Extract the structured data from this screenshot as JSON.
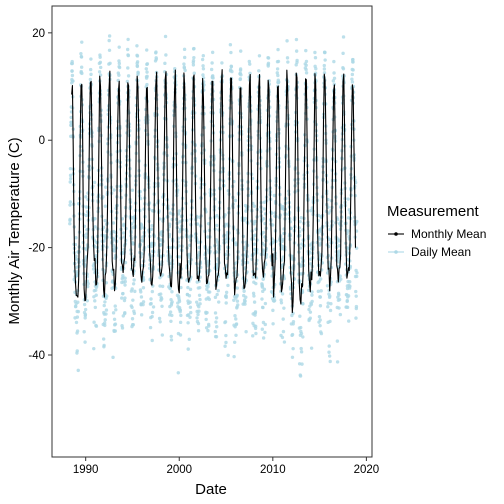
{
  "chart_data": {
    "type": "line",
    "title": "",
    "xlabel": "Date",
    "ylabel": "Monthly Air Temperature (C)",
    "xlim": [
      1986.4,
      2020.6
    ],
    "ylim": [
      -59,
      25
    ],
    "x_ticks": [
      1990,
      2000,
      2010,
      2020
    ],
    "y_ticks": [
      -40,
      -20,
      0,
      20
    ],
    "grid": false,
    "legend": {
      "title": "Measurement",
      "position": "right",
      "entries": [
        "Monthly Mean",
        "Daily Mean"
      ]
    },
    "series": [
      {
        "name": "Monthly Mean",
        "mark": "line",
        "color": "#000000",
        "x_range": [
          1988.5,
          2018.9
        ],
        "summer_peaks_by_year": [
          12,
          13,
          12,
          12,
          13,
          13,
          12,
          13,
          12,
          13,
          12,
          13,
          12,
          13,
          12,
          13,
          12,
          13,
          12,
          13,
          12,
          12,
          12,
          13,
          12,
          12,
          12,
          13,
          12,
          13,
          12
        ],
        "winter_troughs_by_year": [
          -29,
          -31,
          -24,
          -27,
          -25,
          -26,
          -23,
          -26,
          -25,
          -25,
          -24,
          -28,
          -26,
          -25,
          -27,
          -26,
          -25,
          -26,
          -27,
          -25,
          -26,
          -24,
          -27,
          -25,
          -31,
          -27,
          -26,
          -24,
          -27,
          -25,
          -23
        ]
      },
      {
        "name": "Daily Mean",
        "mark": "points",
        "color": "#add8e6",
        "x_range": [
          1988.3,
          2019.0
        ],
        "approx_max": 20.5,
        "approx_min": -55.5
      }
    ]
  }
}
